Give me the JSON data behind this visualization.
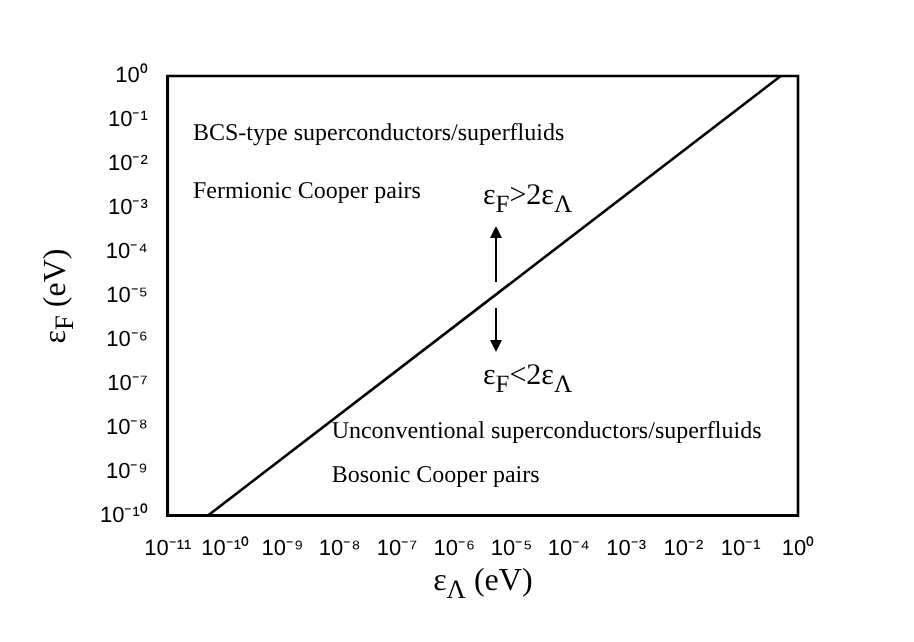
{
  "chart_data": {
    "type": "line",
    "xlabel": "ε$_{Λ}$ (eV)",
    "ylabel": "ε$_{F}$ (eV)",
    "series": [
      {
        "color": "#000000",
        "x": [
          5e-11,
          0.5
        ],
        "values": [
          1e-10,
          1
        ]
      }
    ],
    "log": "xy",
    "xlim": [
      1e-11,
      1
    ],
    "ylim": [
      1e-10,
      1
    ],
    "xticks": [
      {
        "value": 1e-11,
        "label": "10⁻¹¹"
      },
      {
        "value": 1e-10,
        "label": "10⁻¹⁰"
      },
      {
        "value": 1e-09,
        "label": "10⁻⁹"
      },
      {
        "value": 1e-08,
        "label": "10⁻⁸"
      },
      {
        "value": 1e-07,
        "label": "10⁻⁷"
      },
      {
        "value": 1e-06,
        "label": "10⁻⁶"
      },
      {
        "value": 1e-05,
        "label": "10⁻⁵"
      },
      {
        "value": 0.0001,
        "label": "10⁻⁴"
      },
      {
        "value": 0.001,
        "label": "10⁻³"
      },
      {
        "value": 0.01,
        "label": "10⁻²"
      },
      {
        "value": 0.1,
        "label": "10⁻¹"
      },
      {
        "value": 1,
        "label": "10⁰"
      }
    ],
    "yticks": [
      {
        "value": 1e-10,
        "label": "10⁻¹⁰"
      },
      {
        "value": 1e-09,
        "label": "10⁻⁹"
      },
      {
        "value": 1e-08,
        "label": "10⁻⁸"
      },
      {
        "value": 1e-07,
        "label": "10⁻⁷"
      },
      {
        "value": 1e-06,
        "label": "10⁻⁶"
      },
      {
        "value": 1e-05,
        "label": "10⁻⁵"
      },
      {
        "value": 0.0001,
        "label": "10⁻⁴"
      },
      {
        "value": 0.001,
        "label": "10⁻³"
      },
      {
        "value": 0.01,
        "label": "10⁻²"
      },
      {
        "value": 0.1,
        "label": "10⁻¹"
      },
      {
        "value": 1,
        "label": "10⁰"
      }
    ],
    "grid": false,
    "legend": false,
    "marker": "none",
    "line_style": "solid",
    "annotations": [
      "BCS-type superconductors/superfluids",
      "Fermionic Cooper pairs",
      "ε$_{F}$>2ε$_{Λ}$",
      "ε$_{F}$<2ε$_{Λ}$",
      "Unconventional superconductors/superfluids",
      "Bosonic Cooper pairs"
    ]
  }
}
